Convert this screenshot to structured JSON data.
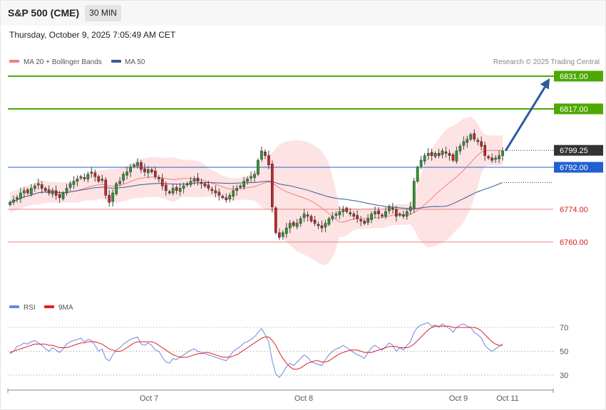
{
  "header": {
    "instrument": "S&P 500 (CME)",
    "timeframe": "30 MIN",
    "datetime": "Thursday, October 9, 2025 7:05:49 AM CET"
  },
  "legend": {
    "bollinger_label": "MA 20 + Bollinger Bands",
    "ma50_label": "MA 50",
    "copyright": "Research © 2025 Trading Central"
  },
  "rsi_legend": {
    "rsi_label": "RSI",
    "ma_label": "9MA"
  },
  "colors": {
    "bullish": "#2a9d2a",
    "bearish": "#d42020",
    "bollinger_fill": "#fde3e3",
    "ma20": "#f08080",
    "ma50": "#3a5a9a",
    "target_green": "#4ea800",
    "current_line": "#2060d0",
    "support_red": "#e88080",
    "arrow": "#2e5aa0",
    "rsi_line": "#6a8ae0",
    "rsi_ma": "#e02020"
  },
  "chart_data": [
    {
      "type": "candlestick",
      "title": "S&P 500 (CME) 30 MIN",
      "ylim": [
        6748,
        6837
      ],
      "x_tick_labels": [
        "Oct 7",
        "Oct 8",
        "Oct 9",
        "Oct 11"
      ],
      "levels": [
        {
          "value": 6831.0,
          "label": "6831.00",
          "kind": "resistance"
        },
        {
          "value": 6817.0,
          "label": "6817.00",
          "kind": "resistance"
        },
        {
          "value": 6799.25,
          "label": "6799.25",
          "kind": "last_price"
        },
        {
          "value": 6792.0,
          "label": "6792.00",
          "kind": "pivot"
        },
        {
          "value": 6774.0,
          "label": "6774.00",
          "kind": "support"
        },
        {
          "value": 6760.0,
          "label": "6760.00",
          "kind": "support"
        }
      ],
      "close": [
        6777,
        6778,
        6779,
        6781,
        6782,
        6781,
        6783,
        6784,
        6785,
        6783,
        6782,
        6781,
        6782,
        6780,
        6779,
        6781,
        6783,
        6785,
        6786,
        6787,
        6788,
        6787,
        6789,
        6790,
        6788,
        6786,
        6787,
        6780,
        6777,
        6781,
        6785,
        6786,
        6789,
        6790,
        6792,
        6793,
        6794,
        6791,
        6790,
        6791,
        6790,
        6788,
        6787,
        6784,
        6782,
        6781,
        6783,
        6782,
        6783,
        6784,
        6785,
        6786,
        6787,
        6786,
        6785,
        6784,
        6783,
        6782,
        6781,
        6780,
        6779,
        6778,
        6780,
        6782,
        6783,
        6784,
        6786,
        6787,
        6788,
        6789,
        6795,
        6799,
        6797,
        6793,
        6775,
        6764,
        6762,
        6764,
        6766,
        6768,
        6767,
        6768,
        6770,
        6772,
        6771,
        6769,
        6768,
        6767,
        6766,
        6768,
        6770,
        6771,
        6772,
        6773,
        6774,
        6773,
        6772,
        6771,
        6770,
        6769,
        6768,
        6770,
        6772,
        6773,
        6772,
        6771,
        6773,
        6775,
        6774,
        6771,
        6772,
        6771,
        6773,
        6775,
        6786,
        6792,
        6795,
        6797,
        6798,
        6797,
        6798,
        6797,
        6799,
        6798,
        6797,
        6795,
        6799,
        6801,
        6803,
        6804,
        6806,
        6804,
        6803,
        6801,
        6797,
        6796,
        6795,
        6796,
        6797,
        6799
      ],
      "open_prev_close": true,
      "ma20_approx": "computed from close",
      "ma50_approx": "computed from close"
    },
    {
      "type": "line",
      "title": "RSI",
      "yticks": [
        30,
        50,
        70
      ],
      "series": [
        {
          "name": "RSI",
          "values": [
            48,
            50,
            54,
            55,
            57,
            56,
            58,
            59,
            57,
            55,
            52,
            50,
            53,
            51,
            49,
            52,
            56,
            58,
            59,
            60,
            61,
            58,
            60,
            59,
            55,
            50,
            52,
            44,
            42,
            47,
            51,
            53,
            56,
            58,
            60,
            61,
            62,
            56,
            55,
            57,
            55,
            51,
            50,
            45,
            41,
            40,
            44,
            43,
            45,
            47,
            49,
            51,
            52,
            50,
            49,
            48,
            47,
            46,
            45,
            44,
            43,
            42,
            46,
            50,
            52,
            54,
            57,
            58,
            60,
            62,
            66,
            69,
            64,
            58,
            42,
            31,
            28,
            32,
            37,
            40,
            38,
            41,
            44,
            47,
            45,
            41,
            40,
            39,
            38,
            43,
            47,
            50,
            52,
            53,
            55,
            53,
            51,
            49,
            47,
            46,
            44,
            49,
            53,
            55,
            53,
            51,
            54,
            57,
            55,
            50,
            53,
            51,
            55,
            58,
            66,
            70,
            72,
            73,
            74,
            71,
            72,
            70,
            73,
            71,
            69,
            66,
            70,
            72,
            73,
            71,
            70,
            66,
            64,
            61,
            55,
            52,
            50,
            52,
            54,
            56
          ]
        },
        {
          "name": "9MA",
          "values": [
            49,
            50,
            51,
            52,
            53,
            54,
            55,
            56,
            56,
            56,
            56,
            55,
            55,
            54,
            53,
            53,
            53,
            54,
            55,
            56,
            57,
            57,
            58,
            58,
            58,
            57,
            56,
            54,
            52,
            51,
            50,
            50,
            51,
            53,
            55,
            57,
            58,
            58,
            58,
            58,
            58,
            57,
            55,
            53,
            51,
            49,
            47,
            46,
            45,
            45,
            45,
            46,
            47,
            48,
            48,
            49,
            49,
            48,
            47,
            46,
            45,
            45,
            45,
            46,
            47,
            49,
            51,
            53,
            55,
            57,
            59,
            61,
            62,
            62,
            59,
            55,
            49,
            44,
            40,
            37,
            35,
            35,
            36,
            38,
            40,
            41,
            42,
            42,
            41,
            41,
            42,
            44,
            46,
            48,
            49,
            50,
            51,
            51,
            51,
            50,
            49,
            49,
            49,
            50,
            51,
            52,
            53,
            54,
            54,
            54,
            53,
            53,
            53,
            54,
            56,
            59,
            62,
            65,
            68,
            70,
            71,
            71,
            71,
            71,
            71,
            70,
            70,
            70,
            70,
            70,
            70,
            70,
            69,
            67,
            64,
            61,
            58,
            56,
            55,
            55
          ]
        }
      ]
    }
  ]
}
